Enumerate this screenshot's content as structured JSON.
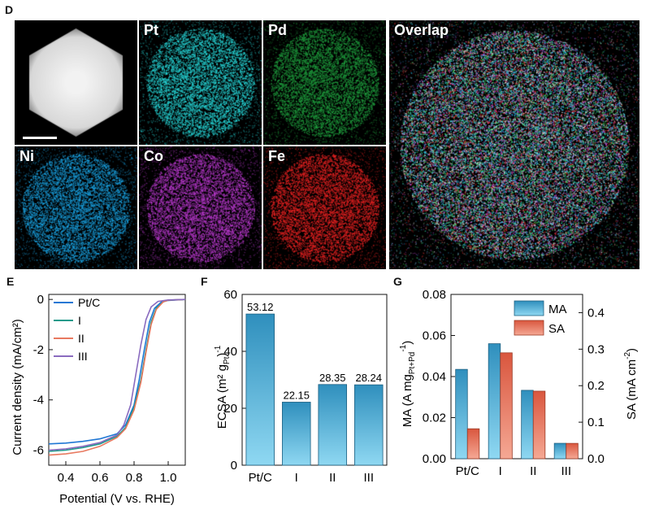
{
  "panels": {
    "d": "D",
    "e": "E",
    "f": "F",
    "g": "G"
  },
  "colors": {
    "tile_bg": "#000000",
    "bar_blue": "#4fb3d8",
    "bar_orange": "#e8795f"
  },
  "maps": [
    {
      "id": "haadf",
      "label": "",
      "colors": [
        "#ffffff"
      ]
    },
    {
      "id": "pt",
      "label": "Pt",
      "colors": [
        "#27d3d4"
      ]
    },
    {
      "id": "pd",
      "label": "Pd",
      "colors": [
        "#1f9b3d"
      ]
    },
    {
      "id": "ni",
      "label": "Ni",
      "colors": [
        "#1a9fdd"
      ]
    },
    {
      "id": "co",
      "label": "Co",
      "colors": [
        "#b438c8"
      ]
    },
    {
      "id": "fe",
      "label": "Fe",
      "colors": [
        "#e52222"
      ]
    },
    {
      "id": "overlap",
      "label": "Overlap",
      "colors": [
        "#36d7d8",
        "#c04ad2",
        "#e33434",
        "#2aa1e0",
        "#3fd35a",
        "#e6e6e6"
      ]
    }
  ],
  "chart_data": [
    {
      "type": "line",
      "panel": "E",
      "xlabel": "Potential (V vs. RHE)",
      "ylabel": "Current density (mA/cm²)",
      "xlim": [
        0.3,
        1.1
      ],
      "ylim": [
        -6.6,
        0.2
      ],
      "xticks": [
        "0.4",
        "0.6",
        "0.8",
        "1.0"
      ],
      "yticks": [
        "0",
        "-2",
        "-4",
        "-6"
      ],
      "series": [
        {
          "name": "Pt/C",
          "color": "#1f77d4",
          "points": [
            [
              0.3,
              -5.75
            ],
            [
              0.4,
              -5.72
            ],
            [
              0.5,
              -5.65
            ],
            [
              0.6,
              -5.55
            ],
            [
              0.7,
              -5.35
            ],
            [
              0.75,
              -5.0
            ],
            [
              0.8,
              -4.2
            ],
            [
              0.83,
              -3.2
            ],
            [
              0.86,
              -2.0
            ],
            [
              0.89,
              -0.9
            ],
            [
              0.92,
              -0.35
            ],
            [
              0.96,
              -0.1
            ],
            [
              1.0,
              -0.04
            ],
            [
              1.1,
              0
            ]
          ]
        },
        {
          "name": "I",
          "color": "#1e9a8a",
          "points": [
            [
              0.3,
              -6.05
            ],
            [
              0.4,
              -6.0
            ],
            [
              0.5,
              -5.9
            ],
            [
              0.6,
              -5.75
            ],
            [
              0.7,
              -5.45
            ],
            [
              0.75,
              -5.1
            ],
            [
              0.8,
              -4.3
            ],
            [
              0.84,
              -3.2
            ],
            [
              0.87,
              -2.0
            ],
            [
              0.9,
              -0.9
            ],
            [
              0.93,
              -0.35
            ],
            [
              0.97,
              -0.1
            ],
            [
              1.0,
              -0.03
            ],
            [
              1.1,
              0
            ]
          ]
        },
        {
          "name": "II",
          "color": "#e8795f",
          "points": [
            [
              0.3,
              -6.2
            ],
            [
              0.4,
              -6.15
            ],
            [
              0.5,
              -6.05
            ],
            [
              0.6,
              -5.85
            ],
            [
              0.7,
              -5.5
            ],
            [
              0.75,
              -5.15
            ],
            [
              0.8,
              -4.4
            ],
            [
              0.84,
              -3.3
            ],
            [
              0.87,
              -2.1
            ],
            [
              0.9,
              -1.0
            ],
            [
              0.93,
              -0.4
            ],
            [
              0.97,
              -0.1
            ],
            [
              1.0,
              -0.03
            ],
            [
              1.1,
              0
            ]
          ]
        },
        {
          "name": "III",
          "color": "#8a6bbf",
          "points": [
            [
              0.3,
              -6.0
            ],
            [
              0.4,
              -5.95
            ],
            [
              0.5,
              -5.85
            ],
            [
              0.6,
              -5.7
            ],
            [
              0.7,
              -5.4
            ],
            [
              0.74,
              -5.0
            ],
            [
              0.78,
              -4.2
            ],
            [
              0.81,
              -3.0
            ],
            [
              0.84,
              -1.8
            ],
            [
              0.87,
              -0.8
            ],
            [
              0.9,
              -0.3
            ],
            [
              0.94,
              -0.08
            ],
            [
              1.0,
              -0.02
            ],
            [
              1.1,
              0
            ]
          ]
        }
      ]
    },
    {
      "type": "bar",
      "panel": "F",
      "categories": [
        "Pt/C",
        "I",
        "II",
        "III"
      ],
      "values": [
        53.12,
        22.15,
        28.35,
        28.24
      ],
      "labels": [
        "53.12",
        "22.15",
        "28.35",
        "28.24"
      ],
      "ylim": [
        0,
        60
      ],
      "yticks": [
        "0",
        "20",
        "40",
        "60"
      ],
      "ylabel": "ECSA (m² g",
      "ylabel_sub": "Pt",
      "ylabel_tail": ")",
      "ylabel_sup": "-1"
    },
    {
      "type": "bar",
      "panel": "G",
      "categories": [
        "Pt/C",
        "I",
        "II",
        "III"
      ],
      "series": [
        {
          "name": "MA",
          "axis": "left",
          "values": [
            0.0435,
            0.056,
            0.0333,
            0.0075
          ]
        },
        {
          "name": "SA",
          "axis": "right",
          "values": [
            0.082,
            0.29,
            0.185,
            0.042
          ]
        }
      ],
      "ylim_left": [
        0,
        0.08
      ],
      "ylim_right": [
        0,
        0.45
      ],
      "yticks_left": [
        "0.00",
        "0.02",
        "0.04",
        "0.06",
        "0.08"
      ],
      "yticks_right": [
        "0.0",
        "0.1",
        "0.2",
        "0.3",
        "0.4"
      ],
      "ylabel_left": "MA (A mg",
      "ylabel_left_sub": "Pt+Pd",
      "ylabel_left_sup": "-1",
      "ylabel_left_tail": ")",
      "ylabel_right": "SA (mA cm",
      "ylabel_right_sup": "-2",
      "ylabel_right_tail": ")"
    }
  ]
}
